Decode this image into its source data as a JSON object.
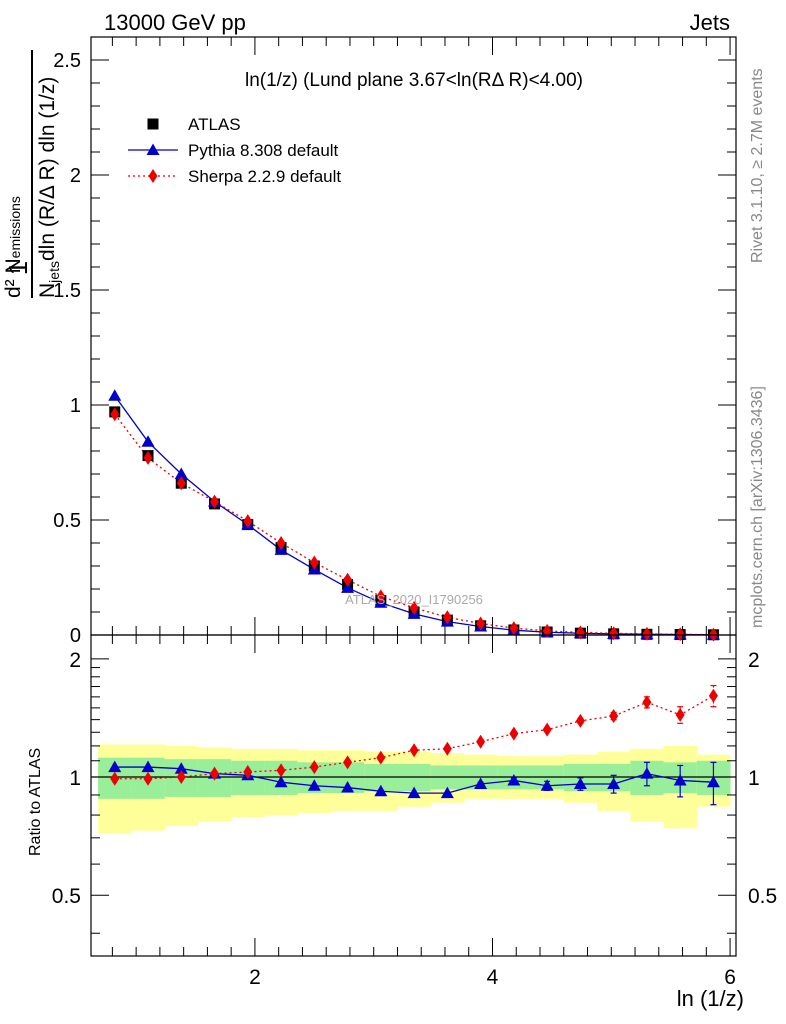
{
  "header": {
    "left": "13000 GeV pp",
    "right": "Jets"
  },
  "side_labels": {
    "rivet": "Rivet 3.1.10, ≥ 2.7M events",
    "mcplots": "mcplots.cern.ch [arXiv:1306.3436]"
  },
  "watermark": "ATLAS_2020_I1790256",
  "colors": {
    "atlas": "#000000",
    "pythia": "#0000cc",
    "sherpa": "#ee0000",
    "band_inner": "#99ee99",
    "band_outer": "#ffff99"
  },
  "chart_data": [
    {
      "type": "scatter",
      "title": "ln(1/z) (Lund plane 3.67<ln(RΔ R)<4.00)",
      "xlabel": "ln (1/z)",
      "ylabel": "1/N_jets dN_emissions / dln(R/ΔR) dln(1/z)",
      "ylabel_parts": {
        "frac": "1",
        "num_main": "d² N",
        "num_sub": "emissions",
        "den_main": "N",
        "den_sub": "jets",
        "den_rest": "dln (R/Δ R) dln (1/z)"
      },
      "xlim": [
        0.62,
        6.05
      ],
      "ylim": [
        0,
        2.6
      ],
      "yticks": [
        0,
        0.5,
        1,
        1.5,
        2,
        2.5
      ],
      "ytick_labels": [
        "0",
        "0.5",
        "1",
        "1.5",
        "2",
        "2.5"
      ],
      "legend_position": "top-left",
      "x": [
        0.82,
        1.1,
        1.38,
        1.66,
        1.94,
        2.22,
        2.5,
        2.78,
        3.06,
        3.34,
        3.62,
        3.9,
        4.18,
        4.46,
        4.74,
        5.02,
        5.3,
        5.58,
        5.86
      ],
      "series": [
        {
          "name": "ATLAS",
          "marker": "square",
          "values": [
            0.97,
            0.78,
            0.66,
            0.57,
            0.48,
            0.38,
            0.3,
            0.22,
            0.15,
            0.1,
            0.065,
            0.04,
            0.022,
            0.013,
            0.008,
            0.005,
            0.003,
            0.002,
            0.001
          ]
        },
        {
          "name": "Pythia 8.308 default",
          "marker": "triangle",
          "values": [
            1.04,
            0.84,
            0.7,
            0.58,
            0.48,
            0.37,
            0.285,
            0.205,
            0.14,
            0.092,
            0.058,
            0.037,
            0.021,
            0.012,
            0.0075,
            0.005,
            0.003,
            0.002,
            0.001
          ]
        },
        {
          "name": "Sherpa 2.2.9 default",
          "marker": "diamond",
          "values": [
            0.96,
            0.77,
            0.66,
            0.58,
            0.495,
            0.4,
            0.315,
            0.24,
            0.168,
            0.118,
            0.077,
            0.05,
            0.03,
            0.018,
            0.011,
            0.0075,
            0.005,
            0.003,
            0.0015
          ]
        }
      ]
    },
    {
      "type": "scatter",
      "xlabel": "ln (1/z)",
      "ylabel": "Ratio to ATLAS",
      "xlim": [
        0.62,
        6.05
      ],
      "ylim": [
        0.35,
        2.3
      ],
      "yticks": [
        0.5,
        1,
        2
      ],
      "ytick_labels": [
        "0.5",
        "1",
        "2"
      ],
      "xticks": [
        2,
        4,
        6
      ],
      "xtick_labels": [
        "2",
        "4",
        "6"
      ],
      "reference_line": 1,
      "bin_edges": [
        0.68,
        0.96,
        1.24,
        1.52,
        1.8,
        2.08,
        2.36,
        2.64,
        2.92,
        3.2,
        3.48,
        3.76,
        4.04,
        4.32,
        4.6,
        4.88,
        5.16,
        5.44,
        5.72,
        6.0
      ],
      "band_inner": {
        "low": [
          0.88,
          0.88,
          0.89,
          0.89,
          0.9,
          0.9,
          0.91,
          0.91,
          0.92,
          0.92,
          0.93,
          0.93,
          0.93,
          0.93,
          0.92,
          0.92,
          0.9,
          0.91,
          0.9
        ],
        "high": [
          1.12,
          1.12,
          1.11,
          1.11,
          1.1,
          1.1,
          1.09,
          1.09,
          1.08,
          1.08,
          1.07,
          1.07,
          1.07,
          1.07,
          1.08,
          1.08,
          1.1,
          1.09,
          1.1
        ]
      },
      "band_outer": {
        "low": [
          0.72,
          0.73,
          0.75,
          0.77,
          0.79,
          0.8,
          0.81,
          0.82,
          0.82,
          0.84,
          0.86,
          0.88,
          0.88,
          0.88,
          0.86,
          0.82,
          0.77,
          0.74,
          0.84
        ],
        "high": [
          1.21,
          1.21,
          1.2,
          1.19,
          1.18,
          1.18,
          1.17,
          1.17,
          1.16,
          1.16,
          1.15,
          1.14,
          1.13,
          1.13,
          1.14,
          1.16,
          1.18,
          1.2,
          1.14
        ]
      },
      "x": [
        0.82,
        1.1,
        1.38,
        1.66,
        1.94,
        2.22,
        2.5,
        2.78,
        3.06,
        3.34,
        3.62,
        3.9,
        4.18,
        4.46,
        4.74,
        5.02,
        5.3,
        5.58,
        5.86
      ],
      "series": [
        {
          "name": "Pythia 8.308 default",
          "marker": "triangle",
          "values": [
            1.06,
            1.06,
            1.05,
            1.02,
            1.01,
            0.97,
            0.95,
            0.94,
            0.92,
            0.91,
            0.91,
            0.96,
            0.98,
            0.95,
            0.96,
            0.96,
            1.02,
            0.98,
            0.97
          ],
          "errors": [
            0.005,
            0.005,
            0.005,
            0.005,
            0.005,
            0.005,
            0.005,
            0.005,
            0.006,
            0.007,
            0.008,
            0.01,
            0.015,
            0.025,
            0.035,
            0.05,
            0.07,
            0.09,
            0.12
          ]
        },
        {
          "name": "Sherpa 2.2.9 default",
          "marker": "diamond",
          "values": [
            0.99,
            0.99,
            1.0,
            1.02,
            1.03,
            1.04,
            1.06,
            1.09,
            1.12,
            1.17,
            1.18,
            1.23,
            1.29,
            1.32,
            1.39,
            1.43,
            1.55,
            1.44,
            1.61
          ],
          "errors": [
            0.004,
            0.004,
            0.004,
            0.004,
            0.005,
            0.005,
            0.005,
            0.006,
            0.006,
            0.007,
            0.008,
            0.01,
            0.012,
            0.015,
            0.02,
            0.03,
            0.05,
            0.07,
            0.1
          ]
        }
      ]
    }
  ]
}
